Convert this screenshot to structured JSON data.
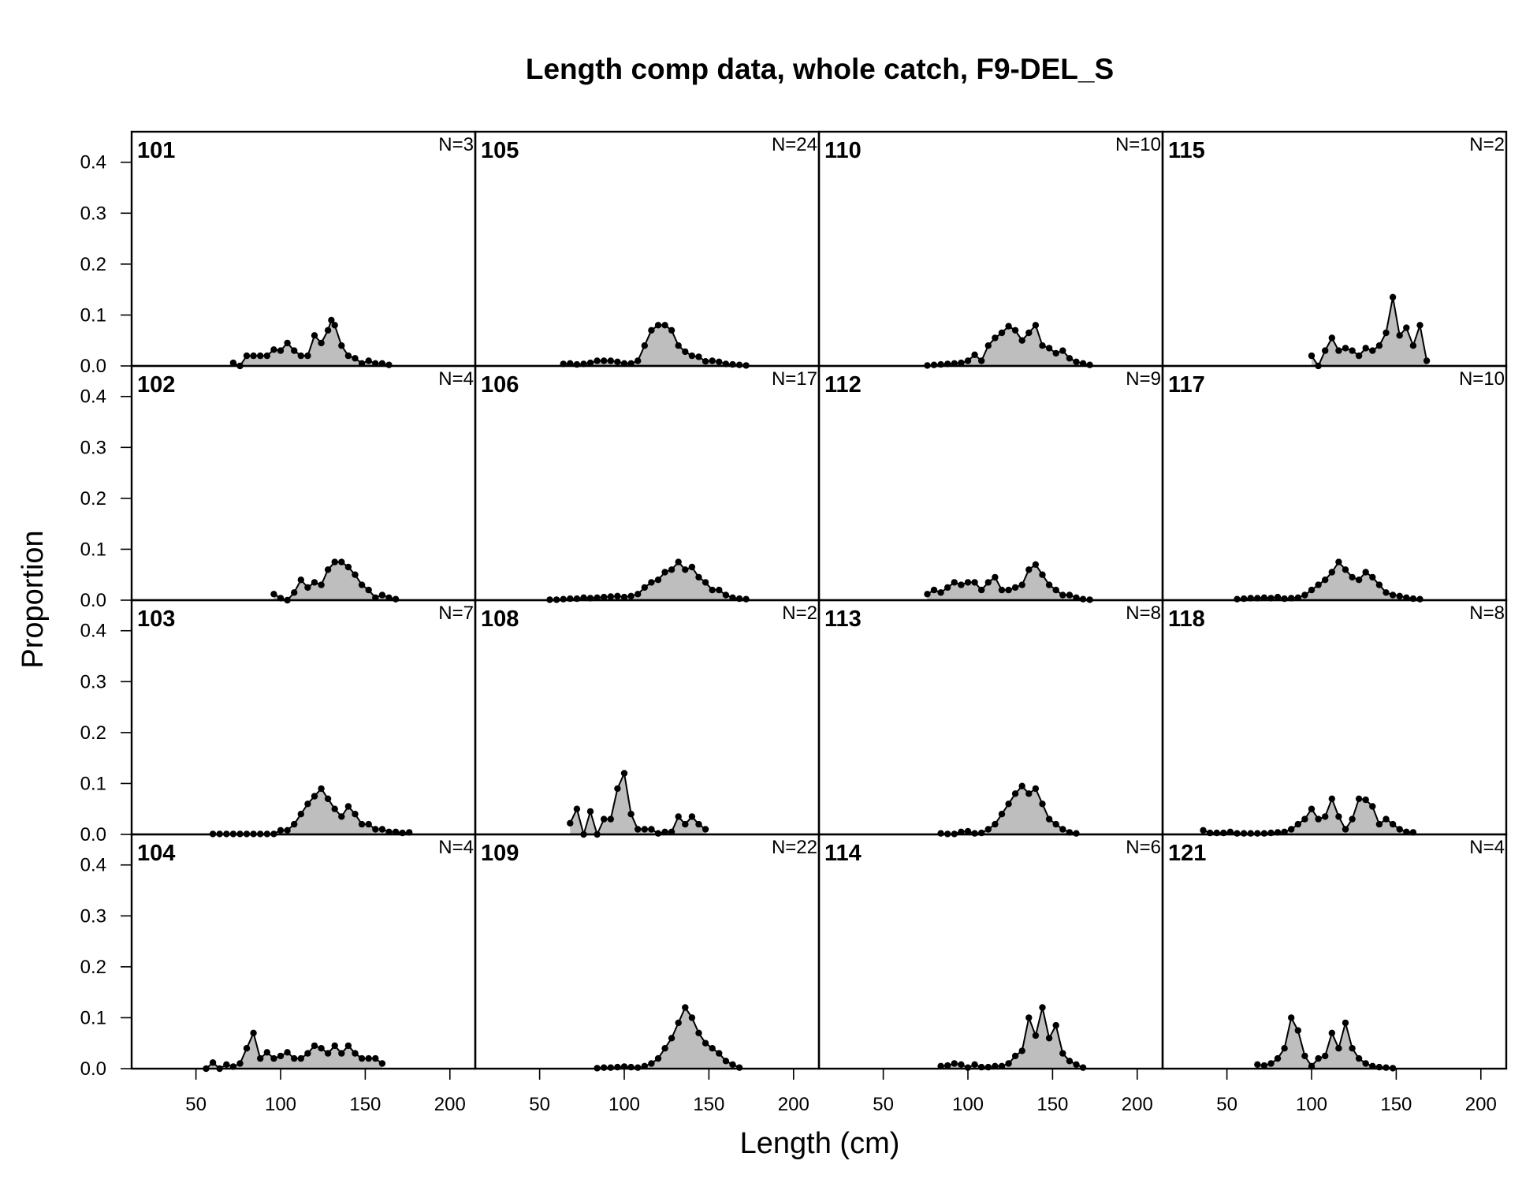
{
  "chart_data": {
    "type": "area",
    "title": "Length comp data, whole catch, F9-DEL_S",
    "xlabel": "Length (cm)",
    "ylabel": "Proportion",
    "xlim": [
      12,
      215
    ],
    "ylim": [
      0,
      0.46
    ],
    "x_ticks": [
      "50",
      "100",
      "150",
      "200"
    ],
    "y_ticks": [
      "0.0",
      "0.1",
      "0.2",
      "0.3",
      "0.4"
    ],
    "layout": "4x4 grid, column-major",
    "panels": [
      {
        "label": "101",
        "n": "N=3",
        "x": [
          72,
          76,
          80,
          84,
          88,
          92,
          96,
          100,
          104,
          108,
          112,
          116,
          120,
          124,
          128,
          130,
          132,
          136,
          140,
          144,
          148,
          152,
          156,
          160,
          164
        ],
        "y": [
          0.006,
          0.0,
          0.02,
          0.02,
          0.02,
          0.02,
          0.032,
          0.03,
          0.045,
          0.03,
          0.02,
          0.02,
          0.06,
          0.045,
          0.07,
          0.09,
          0.08,
          0.04,
          0.02,
          0.015,
          0.005,
          0.01,
          0.005,
          0.005,
          0.002
        ]
      },
      {
        "label": "102",
        "n": "N=4",
        "x": [
          96,
          100,
          104,
          108,
          112,
          116,
          120,
          124,
          128,
          132,
          136,
          140,
          144,
          148,
          152,
          156,
          160,
          164,
          168
        ],
        "y": [
          0.012,
          0.004,
          0.0,
          0.015,
          0.04,
          0.025,
          0.035,
          0.03,
          0.06,
          0.075,
          0.075,
          0.065,
          0.05,
          0.03,
          0.02,
          0.005,
          0.01,
          0.005,
          0.002
        ]
      },
      {
        "label": "103",
        "n": "N=7",
        "x": [
          60,
          64,
          68,
          72,
          76,
          80,
          84,
          88,
          92,
          96,
          100,
          104,
          108,
          112,
          116,
          120,
          124,
          128,
          132,
          136,
          140,
          144,
          148,
          152,
          156,
          160,
          164,
          168,
          172,
          176
        ],
        "y": [
          0.001,
          0.001,
          0.001,
          0.001,
          0.001,
          0.001,
          0.001,
          0.001,
          0.001,
          0.001,
          0.008,
          0.008,
          0.02,
          0.04,
          0.06,
          0.075,
          0.09,
          0.07,
          0.05,
          0.035,
          0.055,
          0.04,
          0.02,
          0.02,
          0.01,
          0.01,
          0.005,
          0.005,
          0.003,
          0.004
        ]
      },
      {
        "label": "104",
        "n": "N=4",
        "x": [
          56,
          60,
          64,
          68,
          72,
          76,
          80,
          84,
          88,
          92,
          96,
          100,
          104,
          108,
          112,
          116,
          120,
          124,
          128,
          132,
          136,
          140,
          144,
          148,
          152,
          156,
          160
        ],
        "y": [
          0.0,
          0.012,
          0.0,
          0.008,
          0.004,
          0.01,
          0.04,
          0.07,
          0.02,
          0.032,
          0.02,
          0.025,
          0.032,
          0.02,
          0.02,
          0.03,
          0.045,
          0.04,
          0.03,
          0.045,
          0.03,
          0.045,
          0.03,
          0.02,
          0.02,
          0.02,
          0.01
        ]
      },
      {
        "label": "105",
        "n": "N=24",
        "x": [
          64,
          68,
          72,
          76,
          80,
          84,
          88,
          92,
          96,
          100,
          104,
          108,
          112,
          116,
          120,
          124,
          128,
          132,
          136,
          140,
          144,
          148,
          152,
          156,
          160,
          164,
          168,
          172
        ],
        "y": [
          0.004,
          0.005,
          0.003,
          0.004,
          0.006,
          0.01,
          0.01,
          0.01,
          0.008,
          0.005,
          0.005,
          0.01,
          0.04,
          0.07,
          0.08,
          0.08,
          0.07,
          0.04,
          0.028,
          0.02,
          0.018,
          0.009,
          0.01,
          0.008,
          0.004,
          0.003,
          0.002,
          0.001
        ]
      },
      {
        "label": "106",
        "n": "N=17",
        "x": [
          56,
          60,
          64,
          68,
          72,
          76,
          80,
          84,
          88,
          92,
          96,
          100,
          104,
          108,
          112,
          116,
          120,
          124,
          128,
          132,
          136,
          140,
          144,
          148,
          152,
          156,
          160,
          164,
          168,
          172
        ],
        "y": [
          0.001,
          0.001,
          0.002,
          0.003,
          0.003,
          0.005,
          0.004,
          0.005,
          0.006,
          0.007,
          0.008,
          0.006,
          0.008,
          0.012,
          0.025,
          0.035,
          0.04,
          0.055,
          0.06,
          0.075,
          0.06,
          0.065,
          0.045,
          0.035,
          0.02,
          0.02,
          0.01,
          0.005,
          0.003,
          0.002
        ]
      },
      {
        "label": "108",
        "n": "N=2",
        "x": [
          68,
          72,
          76,
          80,
          84,
          88,
          92,
          96,
          100,
          104,
          108,
          112,
          116,
          120,
          124,
          128,
          132,
          136,
          140,
          144,
          148
        ],
        "y": [
          0.022,
          0.05,
          0.0,
          0.045,
          0.0,
          0.03,
          0.03,
          0.09,
          0.12,
          0.04,
          0.01,
          0.01,
          0.01,
          0.002,
          0.005,
          0.005,
          0.035,
          0.02,
          0.035,
          0.02,
          0.01
        ]
      },
      {
        "label": "109",
        "n": "N=22",
        "x": [
          84,
          88,
          92,
          96,
          100,
          104,
          108,
          112,
          116,
          120,
          124,
          128,
          132,
          136,
          140,
          144,
          148,
          152,
          156,
          160,
          164,
          168
        ],
        "y": [
          0.001,
          0.002,
          0.002,
          0.003,
          0.004,
          0.003,
          0.002,
          0.005,
          0.01,
          0.02,
          0.04,
          0.06,
          0.09,
          0.12,
          0.1,
          0.07,
          0.05,
          0.04,
          0.03,
          0.015,
          0.008,
          0.002
        ]
      },
      {
        "label": "110",
        "n": "N=10",
        "x": [
          76,
          80,
          84,
          88,
          92,
          96,
          100,
          104,
          108,
          112,
          116,
          120,
          124,
          128,
          132,
          136,
          140,
          144,
          148,
          152,
          156,
          160,
          164,
          168,
          172
        ],
        "y": [
          0.001,
          0.002,
          0.003,
          0.004,
          0.005,
          0.006,
          0.01,
          0.022,
          0.01,
          0.04,
          0.055,
          0.065,
          0.078,
          0.07,
          0.05,
          0.065,
          0.08,
          0.04,
          0.035,
          0.025,
          0.03,
          0.015,
          0.008,
          0.005,
          0.002
        ]
      },
      {
        "label": "112",
        "n": "N=9",
        "x": [
          76,
          80,
          84,
          88,
          92,
          96,
          100,
          104,
          108,
          112,
          116,
          120,
          124,
          128,
          132,
          136,
          140,
          144,
          148,
          152,
          156,
          160,
          164,
          168,
          172
        ],
        "y": [
          0.012,
          0.02,
          0.015,
          0.025,
          0.035,
          0.03,
          0.035,
          0.035,
          0.02,
          0.035,
          0.045,
          0.02,
          0.02,
          0.025,
          0.03,
          0.06,
          0.07,
          0.05,
          0.03,
          0.02,
          0.01,
          0.01,
          0.005,
          0.002,
          0.001
        ]
      },
      {
        "label": "113",
        "n": "N=8",
        "x": [
          84,
          88,
          92,
          96,
          100,
          104,
          108,
          112,
          116,
          120,
          124,
          128,
          132,
          136,
          140,
          144,
          148,
          152,
          156,
          160,
          164
        ],
        "y": [
          0.002,
          0.001,
          0.001,
          0.005,
          0.006,
          0.002,
          0.003,
          0.01,
          0.02,
          0.04,
          0.06,
          0.08,
          0.095,
          0.08,
          0.09,
          0.06,
          0.03,
          0.02,
          0.01,
          0.004,
          0.002
        ]
      },
      {
        "label": "114",
        "n": "N=6",
        "x": [
          84,
          88,
          92,
          96,
          100,
          104,
          108,
          112,
          116,
          120,
          124,
          128,
          132,
          136,
          140,
          144,
          148,
          152,
          156,
          160,
          164,
          168
        ],
        "y": [
          0.005,
          0.006,
          0.01,
          0.008,
          0.002,
          0.008,
          0.003,
          0.003,
          0.005,
          0.005,
          0.01,
          0.025,
          0.035,
          0.1,
          0.065,
          0.12,
          0.06,
          0.085,
          0.03,
          0.015,
          0.008,
          0.002
        ]
      },
      {
        "label": "115",
        "n": "N=2",
        "x": [
          100,
          104,
          108,
          112,
          116,
          120,
          124,
          128,
          132,
          136,
          140,
          144,
          148,
          152,
          156,
          160,
          164,
          168
        ],
        "y": [
          0.02,
          0.0,
          0.03,
          0.055,
          0.03,
          0.035,
          0.03,
          0.02,
          0.035,
          0.03,
          0.04,
          0.065,
          0.135,
          0.06,
          0.075,
          0.04,
          0.08,
          0.01
        ]
      },
      {
        "label": "117",
        "n": "N=10",
        "x": [
          56,
          60,
          64,
          68,
          72,
          76,
          80,
          84,
          88,
          92,
          96,
          100,
          104,
          108,
          112,
          116,
          120,
          124,
          128,
          132,
          136,
          140,
          144,
          148,
          152,
          156,
          160,
          164
        ],
        "y": [
          0.002,
          0.003,
          0.004,
          0.004,
          0.005,
          0.004,
          0.006,
          0.003,
          0.004,
          0.005,
          0.01,
          0.02,
          0.03,
          0.04,
          0.055,
          0.075,
          0.06,
          0.045,
          0.04,
          0.055,
          0.045,
          0.03,
          0.015,
          0.01,
          0.008,
          0.005,
          0.003,
          0.002
        ]
      },
      {
        "label": "118",
        "n": "N=8",
        "x": [
          36,
          40,
          44,
          48,
          52,
          56,
          60,
          64,
          68,
          72,
          76,
          80,
          84,
          88,
          92,
          96,
          100,
          104,
          108,
          112,
          116,
          120,
          124,
          128,
          132,
          136,
          140,
          144,
          148,
          152,
          156,
          160
        ],
        "y": [
          0.008,
          0.003,
          0.003,
          0.003,
          0.005,
          0.002,
          0.002,
          0.002,
          0.002,
          0.002,
          0.003,
          0.004,
          0.005,
          0.01,
          0.02,
          0.03,
          0.05,
          0.03,
          0.035,
          0.07,
          0.035,
          0.01,
          0.03,
          0.07,
          0.068,
          0.055,
          0.02,
          0.03,
          0.02,
          0.01,
          0.005,
          0.004
        ]
      },
      {
        "label": "121",
        "n": "N=4",
        "x": [
          68,
          72,
          76,
          80,
          84,
          88,
          92,
          96,
          100,
          104,
          108,
          112,
          116,
          120,
          124,
          128,
          132,
          136,
          140,
          144,
          148
        ],
        "y": [
          0.008,
          0.006,
          0.01,
          0.02,
          0.04,
          0.1,
          0.075,
          0.025,
          0.005,
          0.02,
          0.025,
          0.07,
          0.04,
          0.09,
          0.04,
          0.02,
          0.01,
          0.005,
          0.003,
          0.002,
          0.001
        ]
      }
    ]
  }
}
